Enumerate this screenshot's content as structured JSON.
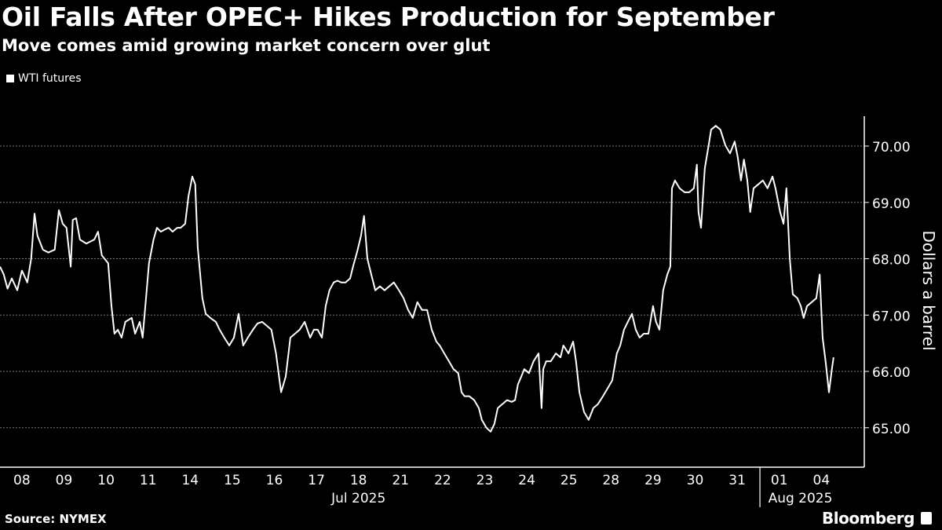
{
  "header": {
    "title": "Oil Falls After OPEC+ Hikes Production for September",
    "subtitle": "Move comes amid growing market concern over glut"
  },
  "footer": {
    "source": "Source: NYMEX",
    "brand": "Bloomberg"
  },
  "chart_data": {
    "type": "line",
    "title": "Oil Falls After OPEC+ Hikes Production for September",
    "subtitle": "Move comes amid growing market concern over glut",
    "xlabel": "",
    "ylabel": "Dollars a barrel",
    "legend": {
      "entries": [
        "WTI futures"
      ],
      "placement": "top-left"
    },
    "x_unit": "trading days since Jul 08, 2025",
    "xlim": [
      -0.52,
      20.02
    ],
    "ylim": [
      64.3,
      70.53
    ],
    "grid": true,
    "yticks": [
      65,
      66,
      67,
      68,
      69,
      70
    ],
    "ytick_labels": [
      "65.00",
      "66.00",
      "67.00",
      "68.00",
      "69.00",
      "70.00"
    ],
    "xticks": [
      0,
      1,
      2,
      3,
      4,
      5,
      6,
      7,
      8,
      9,
      10,
      11,
      12,
      13,
      14,
      15,
      16,
      17,
      18,
      19
    ],
    "xtick_labels": [
      "08",
      "09",
      "10",
      "11",
      "14",
      "15",
      "16",
      "17",
      "18",
      "21",
      "22",
      "23",
      "24",
      "25",
      "28",
      "29",
      "30",
      "31",
      "01",
      "04"
    ],
    "month_labels": [
      {
        "label": "Jul 2025",
        "at": 8
      },
      {
        "label": "Aug 2025",
        "at": 18.5
      }
    ],
    "month_divider_at": 17.54,
    "series": [
      {
        "name": "WTI futures",
        "color": "#ffffff",
        "points": [
          [
            -0.52,
            67.86
          ],
          [
            -0.43,
            67.72
          ],
          [
            -0.34,
            67.47
          ],
          [
            -0.24,
            67.65
          ],
          [
            -0.11,
            67.44
          ],
          [
            0,
            67.79
          ],
          [
            0.13,
            67.58
          ],
          [
            0.22,
            68.0
          ],
          [
            0.3,
            68.8
          ],
          [
            0.37,
            68.41
          ],
          [
            0.5,
            68.16
          ],
          [
            0.63,
            68.11
          ],
          [
            0.78,
            68.16
          ],
          [
            0.88,
            68.86
          ],
          [
            0.97,
            68.62
          ],
          [
            1.06,
            68.55
          ],
          [
            1.16,
            67.86
          ],
          [
            1.21,
            68.69
          ],
          [
            1.29,
            68.72
          ],
          [
            1.38,
            68.34
          ],
          [
            1.53,
            68.27
          ],
          [
            1.72,
            68.34
          ],
          [
            1.81,
            68.48
          ],
          [
            1.9,
            68.06
          ],
          [
            2.05,
            67.92
          ],
          [
            2.13,
            67.16
          ],
          [
            2.2,
            66.67
          ],
          [
            2.28,
            66.74
          ],
          [
            2.37,
            66.6
          ],
          [
            2.46,
            66.88
          ],
          [
            2.61,
            66.95
          ],
          [
            2.69,
            66.67
          ],
          [
            2.8,
            66.88
          ],
          [
            2.87,
            66.6
          ],
          [
            2.95,
            67.3
          ],
          [
            3.02,
            67.92
          ],
          [
            3.13,
            68.34
          ],
          [
            3.21,
            68.55
          ],
          [
            3.3,
            68.48
          ],
          [
            3.4,
            68.52
          ],
          [
            3.49,
            68.55
          ],
          [
            3.58,
            68.48
          ],
          [
            3.69,
            68.55
          ],
          [
            3.77,
            68.55
          ],
          [
            3.88,
            68.62
          ],
          [
            3.96,
            69.11
          ],
          [
            4.05,
            69.46
          ],
          [
            4.12,
            69.32
          ],
          [
            4.18,
            68.2
          ],
          [
            4.29,
            67.3
          ],
          [
            4.37,
            67.02
          ],
          [
            4.48,
            66.95
          ],
          [
            4.61,
            66.88
          ],
          [
            4.7,
            66.74
          ],
          [
            4.81,
            66.6
          ],
          [
            4.93,
            66.46
          ],
          [
            5.04,
            66.6
          ],
          [
            5.15,
            67.02
          ],
          [
            5.26,
            66.46
          ],
          [
            5.37,
            66.6
          ],
          [
            5.49,
            66.74
          ],
          [
            5.6,
            66.85
          ],
          [
            5.71,
            66.88
          ],
          [
            5.82,
            66.81
          ],
          [
            5.93,
            66.74
          ],
          [
            6.04,
            66.32
          ],
          [
            6.16,
            65.63
          ],
          [
            6.27,
            65.91
          ],
          [
            6.38,
            66.6
          ],
          [
            6.49,
            66.67
          ],
          [
            6.6,
            66.74
          ],
          [
            6.72,
            66.88
          ],
          [
            6.85,
            66.6
          ],
          [
            6.94,
            66.74
          ],
          [
            7.03,
            66.74
          ],
          [
            7.13,
            66.6
          ],
          [
            7.22,
            67.16
          ],
          [
            7.31,
            67.44
          ],
          [
            7.41,
            67.58
          ],
          [
            7.5,
            67.61
          ],
          [
            7.59,
            67.58
          ],
          [
            7.69,
            67.58
          ],
          [
            7.8,
            67.65
          ],
          [
            7.87,
            67.86
          ],
          [
            7.97,
            68.13
          ],
          [
            8.06,
            68.41
          ],
          [
            8.13,
            68.76
          ],
          [
            8.21,
            68.0
          ],
          [
            8.28,
            67.79
          ],
          [
            8.4,
            67.44
          ],
          [
            8.51,
            67.51
          ],
          [
            8.62,
            67.44
          ],
          [
            8.73,
            67.51
          ],
          [
            8.84,
            67.58
          ],
          [
            8.96,
            67.44
          ],
          [
            9.07,
            67.3
          ],
          [
            9.18,
            67.09
          ],
          [
            9.29,
            66.95
          ],
          [
            9.4,
            67.23
          ],
          [
            9.51,
            67.09
          ],
          [
            9.63,
            67.09
          ],
          [
            9.74,
            66.74
          ],
          [
            9.85,
            66.53
          ],
          [
            9.93,
            66.46
          ],
          [
            10.04,
            66.32
          ],
          [
            10.15,
            66.18
          ],
          [
            10.26,
            66.04
          ],
          [
            10.37,
            65.97
          ],
          [
            10.45,
            65.63
          ],
          [
            10.52,
            65.56
          ],
          [
            10.63,
            65.56
          ],
          [
            10.75,
            65.49
          ],
          [
            10.86,
            65.35
          ],
          [
            10.93,
            65.14
          ],
          [
            11.04,
            65.0
          ],
          [
            11.14,
            64.93
          ],
          [
            11.23,
            65.07
          ],
          [
            11.31,
            65.35
          ],
          [
            11.42,
            65.42
          ],
          [
            11.53,
            65.49
          ],
          [
            11.64,
            65.46
          ],
          [
            11.72,
            65.49
          ],
          [
            11.79,
            65.77
          ],
          [
            11.87,
            65.91
          ],
          [
            11.94,
            66.04
          ],
          [
            12.05,
            65.97
          ],
          [
            12.16,
            66.18
          ],
          [
            12.28,
            66.32
          ],
          [
            12.35,
            65.35
          ],
          [
            12.39,
            66.04
          ],
          [
            12.46,
            66.18
          ],
          [
            12.57,
            66.18
          ],
          [
            12.69,
            66.32
          ],
          [
            12.8,
            66.25
          ],
          [
            12.87,
            66.46
          ],
          [
            12.99,
            66.32
          ],
          [
            13.1,
            66.53
          ],
          [
            13.17,
            66.18
          ],
          [
            13.25,
            65.63
          ],
          [
            13.36,
            65.28
          ],
          [
            13.47,
            65.14
          ],
          [
            13.58,
            65.35
          ],
          [
            13.69,
            65.42
          ],
          [
            13.81,
            65.56
          ],
          [
            13.92,
            65.7
          ],
          [
            14.03,
            65.84
          ],
          [
            14.14,
            66.32
          ],
          [
            14.22,
            66.46
          ],
          [
            14.31,
            66.74
          ],
          [
            14.4,
            66.88
          ],
          [
            14.5,
            67.02
          ],
          [
            14.59,
            66.74
          ],
          [
            14.68,
            66.6
          ],
          [
            14.78,
            66.67
          ],
          [
            14.89,
            66.67
          ],
          [
            15.0,
            67.16
          ],
          [
            15.07,
            66.88
          ],
          [
            15.15,
            66.74
          ],
          [
            15.24,
            67.44
          ],
          [
            15.34,
            67.72
          ],
          [
            15.41,
            67.86
          ],
          [
            15.45,
            69.25
          ],
          [
            15.52,
            69.39
          ],
          [
            15.63,
            69.25
          ],
          [
            15.75,
            69.18
          ],
          [
            15.86,
            69.18
          ],
          [
            15.97,
            69.25
          ],
          [
            16.04,
            69.67
          ],
          [
            16.08,
            68.83
          ],
          [
            16.14,
            68.55
          ],
          [
            16.23,
            69.6
          ],
          [
            16.32,
            70.01
          ],
          [
            16.38,
            70.29
          ],
          [
            16.49,
            70.36
          ],
          [
            16.6,
            70.29
          ],
          [
            16.72,
            70.01
          ],
          [
            16.83,
            69.87
          ],
          [
            16.94,
            70.08
          ],
          [
            17.01,
            69.81
          ],
          [
            17.09,
            69.39
          ],
          [
            17.16,
            69.76
          ],
          [
            17.24,
            69.39
          ],
          [
            17.31,
            68.83
          ],
          [
            17.39,
            69.25
          ],
          [
            17.5,
            69.32
          ],
          [
            17.61,
            69.39
          ],
          [
            17.72,
            69.25
          ],
          [
            17.84,
            69.46
          ],
          [
            17.91,
            69.25
          ],
          [
            18.02,
            68.83
          ],
          [
            18.1,
            68.62
          ],
          [
            18.17,
            69.25
          ],
          [
            18.25,
            68.0
          ],
          [
            18.32,
            67.37
          ],
          [
            18.43,
            67.3
          ],
          [
            18.51,
            67.16
          ],
          [
            18.58,
            66.95
          ],
          [
            18.66,
            67.16
          ],
          [
            18.77,
            67.23
          ],
          [
            18.88,
            67.3
          ],
          [
            18.96,
            67.72
          ],
          [
            19.03,
            66.6
          ],
          [
            19.1,
            66.18
          ],
          [
            19.18,
            65.63
          ],
          [
            19.25,
            66.04
          ],
          [
            19.29,
            66.25
          ]
        ]
      }
    ]
  }
}
